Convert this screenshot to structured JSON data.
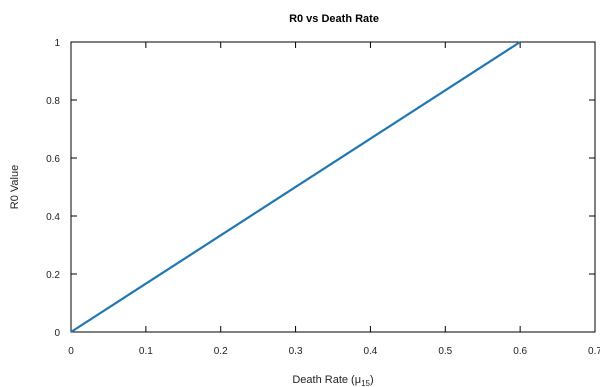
{
  "chart_data": {
    "type": "line",
    "title": "R0 vs Death Rate",
    "xlabel_main": "Death Rate (μ",
    "xlabel_sub": "15",
    "xlabel_end": ")",
    "ylabel": "R0 Value",
    "xlim": [
      0,
      0.7
    ],
    "ylim": [
      0,
      1
    ],
    "xticks": [
      0,
      0.1,
      0.2,
      0.3,
      0.4,
      0.5,
      0.6,
      0.7
    ],
    "yticks": [
      0,
      0.2,
      0.4,
      0.6,
      0.8,
      1
    ],
    "xtick_labels": [
      "0",
      "0.1",
      "0.2",
      "0.3",
      "0.4",
      "0.5",
      "0.6",
      "0.7"
    ],
    "ytick_labels": [
      "0",
      "0.2",
      "0.4",
      "0.6",
      "0.8",
      "1"
    ],
    "grid": false,
    "series": [
      {
        "x": [
          0,
          0.6
        ],
        "y": [
          0,
          1
        ],
        "color": "#1f77b4"
      }
    ]
  }
}
